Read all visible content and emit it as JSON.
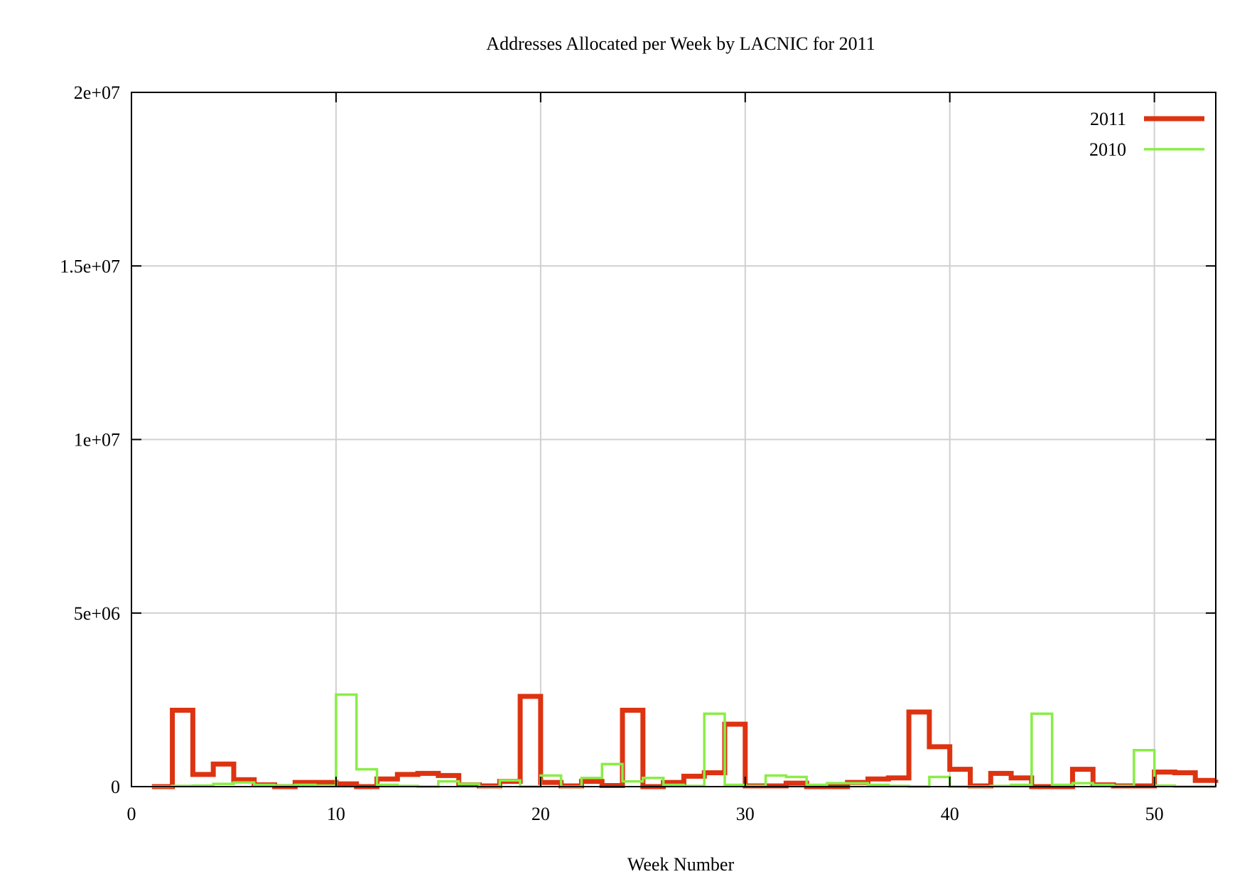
{
  "chart_data": {
    "type": "line",
    "style": "steps",
    "title": "Addresses Allocated per Week by LACNIC for 2011",
    "xlabel": "Week Number",
    "ylabel": "",
    "xlim": [
      0,
      53
    ],
    "ylim": [
      0,
      20000000
    ],
    "xticks": [
      0,
      10,
      20,
      30,
      40,
      50
    ],
    "xtick_labels": [
      "0",
      "10",
      "20",
      "30",
      "40",
      "50"
    ],
    "yticks": [
      0,
      5000000,
      10000000,
      15000000,
      20000000
    ],
    "ytick_labels": [
      "0",
      "5e+06",
      "1e+07",
      "1.5e+07",
      "2e+07"
    ],
    "grid": true,
    "legend_position": "top-right",
    "x": [
      1,
      2,
      3,
      4,
      5,
      6,
      7,
      8,
      9,
      10,
      11,
      12,
      13,
      14,
      15,
      16,
      17,
      18,
      19,
      20,
      21,
      22,
      23,
      24,
      25,
      26,
      27,
      28,
      29,
      30,
      31,
      32,
      33,
      34,
      35,
      36,
      37,
      38,
      39,
      40,
      41,
      42,
      43,
      44,
      45,
      46,
      47,
      48,
      49,
      50,
      51,
      52,
      53
    ],
    "series": [
      {
        "name": "2011",
        "color": "#dd3311",
        "values": [
          0,
          2200000,
          350000,
          650000,
          200000,
          50000,
          0,
          120000,
          120000,
          80000,
          0,
          220000,
          350000,
          380000,
          320000,
          50000,
          20000,
          150000,
          2600000,
          120000,
          20000,
          150000,
          30000,
          2200000,
          0,
          120000,
          300000,
          400000,
          1800000,
          20000,
          20000,
          100000,
          0,
          0,
          120000,
          220000,
          250000,
          2150000,
          1150000,
          500000,
          20000,
          380000,
          250000,
          0,
          0,
          500000,
          50000,
          20000,
          20000,
          420000,
          400000,
          180000,
          200000
        ]
      },
      {
        "name": "2010",
        "color": "#88ee44",
        "values": [
          0,
          20000,
          30000,
          80000,
          120000,
          50000,
          30000,
          50000,
          30000,
          2650000,
          500000,
          50000,
          20000,
          0,
          150000,
          80000,
          0,
          180000,
          0,
          320000,
          0,
          250000,
          650000,
          150000,
          250000,
          50000,
          20000,
          2100000,
          50000,
          20000,
          320000,
          280000,
          50000,
          100000,
          100000,
          50000,
          20000,
          0,
          280000,
          0,
          0,
          20000,
          50000,
          2100000,
          50000,
          100000,
          50000,
          20000,
          1050000,
          30000,
          0,
          0,
          0
        ]
      }
    ]
  }
}
